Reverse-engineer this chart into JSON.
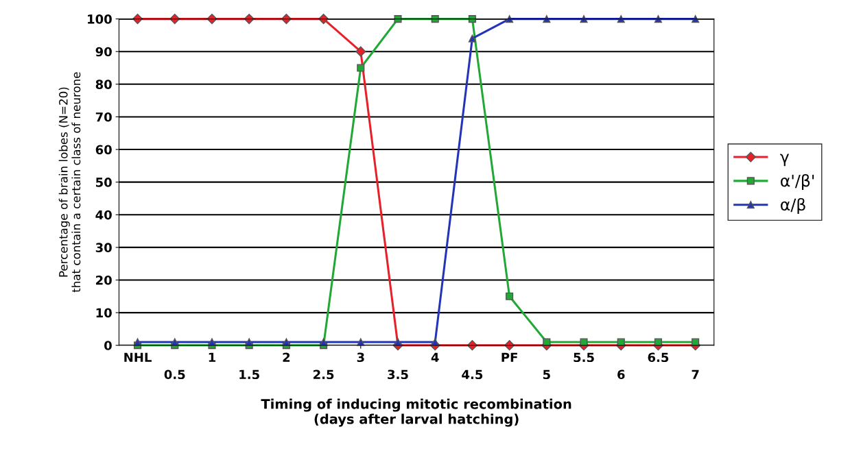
{
  "chart_data": {
    "type": "line",
    "xlabel": "Timing of inducing mitotic recombination\n(days after larval hatching)",
    "ylabel": "Percentage of brain lobes (N=20)\nthat contain a certain class of neurone",
    "categories": [
      "NHL",
      "0.5",
      "1",
      "1.5",
      "2",
      "2.5",
      "3",
      "3.5",
      "4",
      "4.5",
      "PF",
      "5",
      "5.5",
      "6",
      "6.5",
      "7"
    ],
    "series": [
      {
        "name": "γ",
        "color": "#e8202a",
        "marker": "diamond",
        "values": [
          100,
          100,
          100,
          100,
          100,
          100,
          90,
          0,
          0,
          0,
          0,
          0,
          0,
          0,
          0,
          0
        ]
      },
      {
        "name": "α'/β'",
        "color": "#21a836",
        "marker": "square",
        "values": [
          0,
          0,
          0,
          0,
          0,
          0,
          85,
          100,
          100,
          100,
          15,
          1,
          1,
          1,
          1,
          1
        ]
      },
      {
        "name": "α/β",
        "color": "#2434b8",
        "marker": "triangle",
        "values": [
          1,
          1,
          1,
          1,
          1,
          1,
          1,
          1,
          1,
          94,
          100,
          100,
          100,
          100,
          100,
          100
        ]
      }
    ],
    "ylim": [
      0,
      100
    ],
    "yticks": [
      0,
      10,
      20,
      30,
      40,
      50,
      60,
      70,
      80,
      90,
      100
    ],
    "grid": "y",
    "legend": "right",
    "line_style": "solid"
  }
}
